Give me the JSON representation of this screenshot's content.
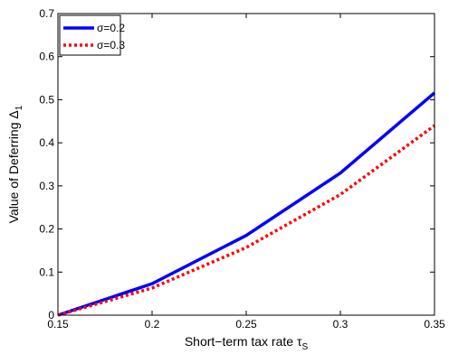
{
  "chart_data": {
    "type": "line",
    "title": "",
    "xlabel": "Short−term tax rate τ",
    "xlabel_sub": "S",
    "ylabel": "Value of Deferring Δ",
    "ylabel_sub": "1",
    "xlim": [
      0.15,
      0.35
    ],
    "ylim": [
      0,
      0.7
    ],
    "xticks": [
      0.15,
      0.2,
      0.25,
      0.3,
      0.35
    ],
    "xtick_labels": [
      "0.15",
      "0.2",
      "0.25",
      "0.3",
      "0.35"
    ],
    "yticks": [
      0,
      0.1,
      0.2,
      0.3,
      0.4,
      0.5,
      0.6,
      0.7
    ],
    "ytick_labels": [
      "0",
      "0.1",
      "0.2",
      "0.3",
      "0.4",
      "0.5",
      "0.6",
      "0.7"
    ],
    "grid": false,
    "legend_position": "top-left",
    "x": [
      0.15,
      0.2,
      0.25,
      0.3,
      0.35
    ],
    "series": [
      {
        "name": "σ=0.2",
        "values": [
          0,
          0.073,
          0.185,
          0.33,
          0.516
        ],
        "color": "#0000ff",
        "style": "solid"
      },
      {
        "name": "σ=0.3",
        "values": [
          0,
          0.063,
          0.157,
          0.28,
          0.44
        ],
        "color": "#ff0000",
        "style": "dotted"
      }
    ]
  }
}
